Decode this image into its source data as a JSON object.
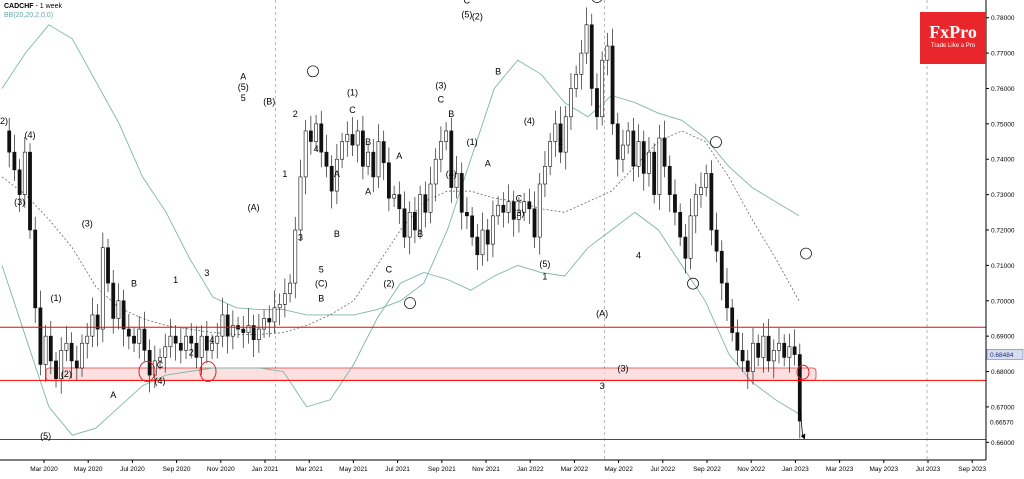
{
  "header": {
    "symbol": "CADCHF",
    "timeframe": "1 week",
    "indicator": "BB(20,20,2,0,0)"
  },
  "brand": {
    "name": "FxPro",
    "tagline": "Trade Like a Pro",
    "color": "#e8262b"
  },
  "chart_data": {
    "type": "candlestick",
    "instrument": "CADCHF",
    "timeframe": "1 week",
    "ylim": [
      0.655,
      0.785
    ],
    "y_ticks": [
      0.66,
      0.67,
      0.68,
      0.69,
      0.7,
      0.71,
      0.72,
      0.73,
      0.74,
      0.75,
      0.76,
      0.77,
      0.78
    ],
    "x_ticks": [
      "Mar 2020",
      "May 2020",
      "Jul 2020",
      "Sep 2020",
      "Nov 2020",
      "Jan 2021",
      "Mar 2021",
      "May 2021",
      "Jul 2021",
      "Sep 2021",
      "Nov 2021",
      "Jan 2022",
      "Mar 2022",
      "May 2022",
      "Jul 2022",
      "Sep 2022",
      "Nov 2022",
      "Jan 2023",
      "Mar 2023",
      "May 2023",
      "Jul 2023",
      "Sep 2023"
    ],
    "current_price": 0.68484,
    "price_label_extra": 0.6657,
    "horizontal_levels": [
      {
        "price": 0.6925,
        "color": "#ff0000"
      },
      {
        "price": 0.6775,
        "color": "#ff0000"
      },
      {
        "price": 0.6608,
        "color": "#ff0000"
      }
    ],
    "support_zone": {
      "from": 0.6775,
      "to": 0.681
    },
    "close_series": [
      0.748,
      0.742,
      0.737,
      0.73,
      0.742,
      0.72,
      0.698,
      0.682,
      0.69,
      0.683,
      0.678,
      0.686,
      0.688,
      0.683,
      0.681,
      0.688,
      0.69,
      0.696,
      0.692,
      0.715,
      0.705,
      0.695,
      0.7,
      0.692,
      0.69,
      0.688,
      0.692,
      0.686,
      0.679,
      0.683,
      0.684,
      0.687,
      0.69,
      0.688,
      0.686,
      0.69,
      0.688,
      0.684,
      0.69,
      0.686,
      0.688,
      0.69,
      0.696,
      0.69,
      0.693,
      0.692,
      0.691,
      0.693,
      0.689,
      0.692,
      0.695,
      0.694,
      0.698,
      0.699,
      0.702,
      0.705,
      0.72,
      0.735,
      0.748,
      0.745,
      0.75,
      0.742,
      0.738,
      0.731,
      0.74,
      0.745,
      0.747,
      0.744,
      0.748,
      0.738,
      0.742,
      0.735,
      0.745,
      0.739,
      0.729,
      0.73,
      0.726,
      0.718,
      0.725,
      0.72,
      0.73,
      0.725,
      0.733,
      0.74,
      0.745,
      0.748,
      0.732,
      0.736,
      0.725,
      0.724,
      0.718,
      0.713,
      0.72,
      0.716,
      0.724,
      0.727,
      0.725,
      0.728,
      0.723,
      0.725,
      0.728,
      0.726,
      0.718,
      0.733,
      0.738,
      0.745,
      0.75,
      0.742,
      0.752,
      0.76,
      0.764,
      0.77,
      0.778,
      0.76,
      0.752,
      0.768,
      0.772,
      0.75,
      0.74,
      0.744,
      0.748,
      0.738,
      0.745,
      0.736,
      0.742,
      0.73,
      0.746,
      0.738,
      0.73,
      0.725,
      0.718,
      0.712,
      0.724,
      0.73,
      0.732,
      0.736,
      0.72,
      0.714,
      0.705,
      0.698,
      0.691,
      0.686,
      0.683,
      0.68,
      0.688,
      0.684,
      0.69,
      0.683,
      0.686,
      0.688,
      0.684,
      0.687,
      0.6848,
      0.666
    ],
    "bollinger_upper": [
      0.76,
      0.77,
      0.778,
      0.774,
      0.762,
      0.75,
      0.735,
      0.725,
      0.712,
      0.701,
      0.698,
      0.6975,
      0.6975,
      0.696,
      0.696,
      0.696,
      0.6975,
      0.7,
      0.705,
      0.72,
      0.74,
      0.76,
      0.768,
      0.764,
      0.756,
      0.752,
      0.758,
      0.756,
      0.753,
      0.751,
      0.746,
      0.738,
      0.732,
      0.728,
      0.724
    ],
    "bollinger_mid": [
      0.735,
      0.73,
      0.723,
      0.715,
      0.704,
      0.698,
      0.695,
      0.693,
      0.692,
      0.691,
      0.6905,
      0.6905,
      0.691,
      0.693,
      0.696,
      0.7,
      0.71,
      0.72,
      0.728,
      0.731,
      0.731,
      0.729,
      0.728,
      0.726,
      0.725,
      0.728,
      0.731,
      0.738,
      0.745,
      0.748,
      0.745,
      0.735,
      0.723,
      0.712,
      0.7
    ],
    "bollinger_lower": [
      0.71,
      0.69,
      0.67,
      0.662,
      0.664,
      0.67,
      0.676,
      0.679,
      0.68,
      0.681,
      0.681,
      0.681,
      0.68,
      0.67,
      0.672,
      0.682,
      0.695,
      0.705,
      0.708,
      0.706,
      0.703,
      0.707,
      0.71,
      0.708,
      0.707,
      0.715,
      0.72,
      0.725,
      0.72,
      0.71,
      0.7,
      0.685,
      0.677,
      0.672,
      0.668
    ],
    "wave_labels": [
      {
        "text": "2)",
        "week": 0,
        "price": 0.75
      },
      {
        "text": "(4)",
        "week": 5,
        "price": 0.746
      },
      {
        "text": "(3)",
        "week": 3,
        "price": 0.727
      },
      {
        "text": "(3)",
        "week": 16,
        "price": 0.721
      },
      {
        "text": "(1)",
        "week": 10,
        "price": 0.7
      },
      {
        "text": "(2)",
        "week": 12,
        "price": 0.6785
      },
      {
        "text": "B",
        "week": 25,
        "price": 0.704
      },
      {
        "text": "1",
        "week": 33,
        "price": 0.705
      },
      {
        "text": "A",
        "week": 21,
        "price": 0.6725
      },
      {
        "text": "C",
        "week": 30,
        "price": 0.681
      },
      {
        "text": "(4)",
        "week": 30,
        "price": 0.6765
      },
      {
        "text": "2",
        "week": 36,
        "price": 0.6845
      },
      {
        "text": "4",
        "week": 40,
        "price": 0.688
      },
      {
        "text": "3",
        "week": 39,
        "price": 0.707
      },
      {
        "text": "(5)",
        "week": 8,
        "price": 0.661
      },
      {
        "text": "5",
        "week": 46,
        "price": 0.7565
      },
      {
        "text": "(5)",
        "week": 46,
        "price": 0.7595
      },
      {
        "text": "A",
        "week": 46,
        "price": 0.7625
      },
      {
        "text": "(B)",
        "week": 51,
        "price": 0.7555
      },
      {
        "text": "(A)",
        "week": 48,
        "price": 0.7255
      },
      {
        "text": "2",
        "week": 56,
        "price": 0.752
      },
      {
        "text": "1",
        "week": 54,
        "price": 0.735
      },
      {
        "text": "4",
        "week": 60,
        "price": 0.742
      },
      {
        "text": "3",
        "week": 57,
        "price": 0.717
      },
      {
        "text": "5",
        "week": 61,
        "price": 0.708
      },
      {
        "text": "(C)",
        "week": 61,
        "price": 0.704
      },
      {
        "text": "B",
        "week": 61,
        "price": 0.6998
      },
      {
        "text": "B",
        "week": 64,
        "price": 0.718
      },
      {
        "text": "A",
        "week": 64,
        "price": 0.735
      },
      {
        "text": "(1)",
        "week": 67,
        "price": 0.758
      },
      {
        "text": "C",
        "week": 67,
        "price": 0.753
      },
      {
        "text": "B",
        "week": 70,
        "price": 0.744
      },
      {
        "text": "A",
        "week": 70,
        "price": 0.73
      },
      {
        "text": "C",
        "week": 74,
        "price": 0.708
      },
      {
        "text": "(2)",
        "week": 74,
        "price": 0.704
      },
      {
        "text": "A",
        "week": 76,
        "price": 0.74
      },
      {
        "text": "B",
        "week": 80,
        "price": 0.718
      },
      {
        "text": "(3)",
        "week": 84,
        "price": 0.76
      },
      {
        "text": "C",
        "week": 84,
        "price": 0.756
      },
      {
        "text": "B",
        "week": 86,
        "price": 0.752
      },
      {
        "text": "(4)",
        "week": 86,
        "price": 0.735
      },
      {
        "text": "C",
        "week": 89,
        "price": 0.784
      },
      {
        "text": "(5)",
        "week": 89,
        "price": 0.78
      },
      {
        "text": "(2)",
        "week": 91,
        "price": 0.7795
      },
      {
        "text": "B",
        "week": 95,
        "price": 0.764
      },
      {
        "text": "(1)",
        "week": 90,
        "price": 0.744
      },
      {
        "text": "A",
        "week": 93,
        "price": 0.738
      },
      {
        "text": "(4)",
        "week": 101,
        "price": 0.75
      },
      {
        "text": "C",
        "week": 99,
        "price": 0.728
      },
      {
        "text": "(3)",
        "week": 99,
        "price": 0.724
      },
      {
        "text": "(5)",
        "week": 104,
        "price": 0.7095
      },
      {
        "text": "1",
        "week": 104,
        "price": 0.706
      },
      {
        "text": "2",
        "week": 107,
        "price": 0.744
      },
      {
        "text": "(A)",
        "week": 115,
        "price": 0.6955
      },
      {
        "text": "3",
        "week": 115,
        "price": 0.675
      },
      {
        "text": "(3)",
        "week": 119,
        "price": 0.68
      },
      {
        "text": "4",
        "week": 122,
        "price": 0.712
      }
    ]
  }
}
